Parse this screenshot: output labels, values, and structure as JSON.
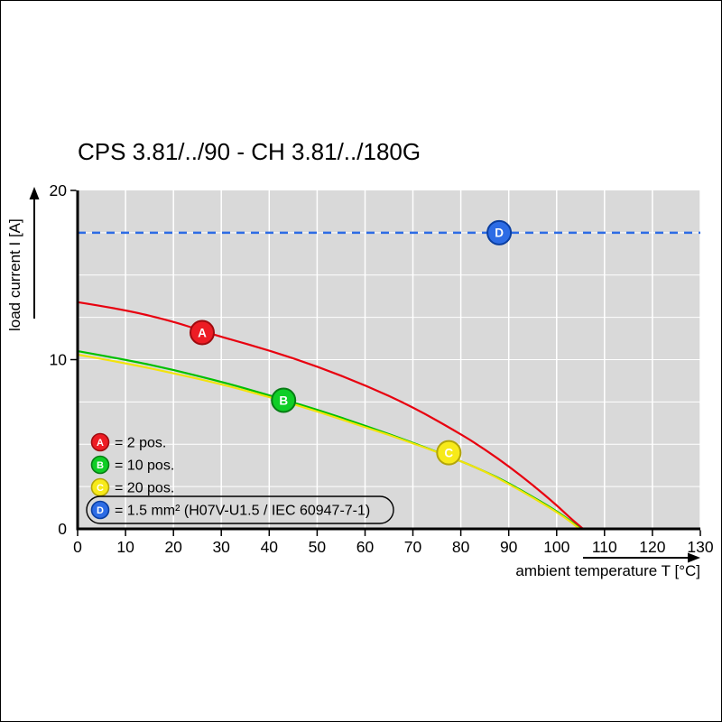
{
  "chart_data": {
    "type": "line",
    "title": "CPS 3.81/../90 - CH 3.81/../180G",
    "xlabel": "ambient temperature T [°C]",
    "ylabel": "load current I [A]",
    "xlim": [
      0,
      130
    ],
    "ylim": [
      0,
      20
    ],
    "x_ticks": [
      0,
      10,
      20,
      30,
      40,
      50,
      60,
      70,
      80,
      90,
      100,
      110,
      120,
      130
    ],
    "y_ticks": [
      0,
      10,
      20
    ],
    "grid": true,
    "plot_background": "#d9d9d9",
    "grid_color": "#ffffff",
    "axis_color": "#000000",
    "series": [
      {
        "id": "A",
        "label": "A",
        "name": "2 pos.",
        "color": "#e8000f",
        "marker_fill": "#ed1c24",
        "marker_stroke": "#9e0b0f",
        "marker_at": {
          "x": 26,
          "y": 11.6
        },
        "points": [
          [
            0,
            13.4
          ],
          [
            10,
            12.95
          ],
          [
            20,
            12.25
          ],
          [
            26,
            11.7
          ],
          [
            30,
            11.35
          ],
          [
            40,
            10.55
          ],
          [
            50,
            9.6
          ],
          [
            60,
            8.5
          ],
          [
            70,
            7.2
          ],
          [
            80,
            5.6
          ],
          [
            85,
            4.7
          ],
          [
            90,
            3.7
          ],
          [
            95,
            2.6
          ],
          [
            100,
            1.4
          ],
          [
            103,
            0.6
          ],
          [
            105.5,
            0
          ]
        ]
      },
      {
        "id": "B",
        "label": "B",
        "name": "10 pos.",
        "color": "#00c000",
        "marker_fill": "#0fce26",
        "marker_stroke": "#067d14",
        "marker_at": {
          "x": 43,
          "y": 7.6
        },
        "points": [
          [
            0,
            10.5
          ],
          [
            10,
            10.0
          ],
          [
            20,
            9.4
          ],
          [
            30,
            8.7
          ],
          [
            40,
            7.9
          ],
          [
            50,
            7.05
          ],
          [
            60,
            6.1
          ],
          [
            70,
            5.1
          ],
          [
            80,
            4.0
          ],
          [
            85,
            3.4
          ],
          [
            90,
            2.7
          ],
          [
            95,
            1.9
          ],
          [
            100,
            1.05
          ],
          [
            103,
            0.45
          ],
          [
            105,
            0
          ]
        ]
      },
      {
        "id": "C",
        "label": "C",
        "name": "20 pos.",
        "color": "#f2e30c",
        "marker_fill": "#f7ea1a",
        "marker_stroke": "#b3a509",
        "marker_at": {
          "x": 77.5,
          "y": 4.5
        },
        "points": [
          [
            0,
            10.3
          ],
          [
            10,
            9.8
          ],
          [
            20,
            9.2
          ],
          [
            30,
            8.55
          ],
          [
            40,
            7.8
          ],
          [
            50,
            6.95
          ],
          [
            60,
            6.0
          ],
          [
            65,
            5.55
          ],
          [
            70,
            5.05
          ],
          [
            75,
            4.55
          ],
          [
            80,
            4.0
          ],
          [
            85,
            3.4
          ],
          [
            90,
            2.65
          ],
          [
            95,
            1.85
          ],
          [
            100,
            1.0
          ],
          [
            103,
            0.4
          ],
          [
            104.8,
            0
          ]
        ]
      }
    ],
    "reference_line": {
      "id": "D",
      "label": "D",
      "name": "1.5 mm² (H07V-U1.5 / IEC 60947-7-1)",
      "value": 17.5,
      "color": "#2d6ce5",
      "dash": [
        9,
        7
      ],
      "marker_fill": "#2d6ce5",
      "marker_stroke": "#0a3ea0",
      "marker_at": {
        "x": 88,
        "y": 17.5
      }
    },
    "legend": {
      "position": "lower-left",
      "items": [
        {
          "label": "A",
          "text": "= 2 pos.",
          "fill": "#ed1c24",
          "stroke": "#9e0b0f",
          "boxed": false
        },
        {
          "label": "B",
          "text": "= 10 pos.",
          "fill": "#0fce26",
          "stroke": "#067d14",
          "boxed": false
        },
        {
          "label": "C",
          "text": "= 20 pos.",
          "fill": "#f7ea1a",
          "stroke": "#b3a509",
          "boxed": false
        },
        {
          "label": "D",
          "text": "= 1.5 mm² (H07V-U1.5 / IEC 60947-7-1)",
          "fill": "#2d6ce5",
          "stroke": "#0a3ea0",
          "boxed": true
        }
      ]
    }
  }
}
